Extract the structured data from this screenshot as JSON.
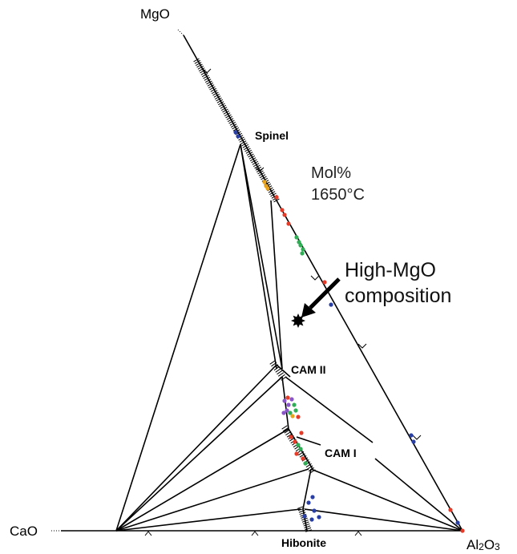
{
  "vertices": {
    "top": "MgO",
    "left": "CaO",
    "right_main": "Al",
    "right_sub": "2",
    "right_o": "O",
    "right_sub2": "3"
  },
  "phases": {
    "spinel": "Spinel",
    "cam2": "CAM II",
    "cam1": "CAM I",
    "hibonite": "Hibonite"
  },
  "conditions": {
    "units": "Mol%",
    "temperature": "1650°C"
  },
  "annotation": {
    "line1": "High-MgO",
    "line2": "composition"
  },
  "colors": {
    "red": "#e53c2a",
    "blue": "#2a3fa5",
    "green": "#2fae55",
    "orange": "#e8a21c",
    "purple": "#8a55c8"
  }
}
